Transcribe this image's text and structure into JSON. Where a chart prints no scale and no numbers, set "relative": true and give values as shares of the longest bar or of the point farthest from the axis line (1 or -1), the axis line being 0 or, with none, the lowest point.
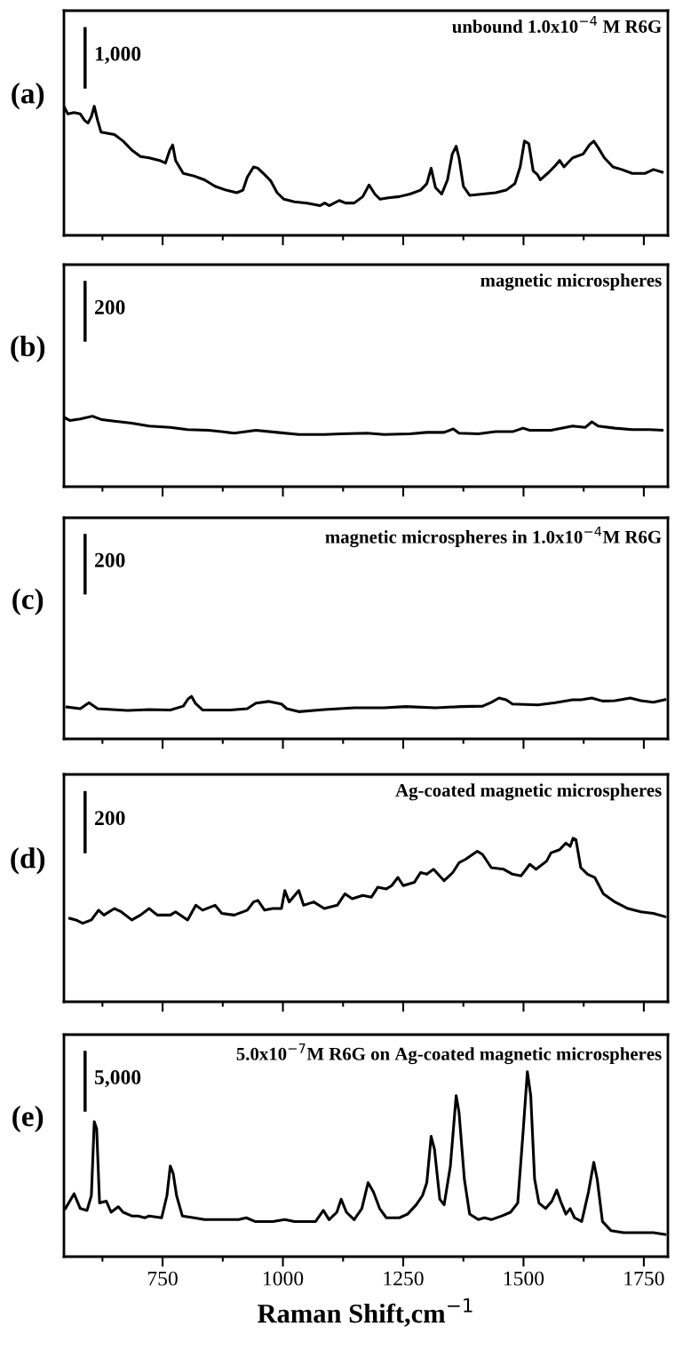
{
  "chart_data": [
    {
      "type": "line",
      "relative": true,
      "title": "unbound 1.0x10$^{−4}$ M R6G",
      "annotations": [
        "(a)",
        "1,000"
      ],
      "color": "#000000",
      "xlim": [
        545,
        1800
      ],
      "xticks": [
        {
          "value": 625,
          "label": null
        },
        750,
        {
          "value": 875,
          "label": null
        },
        1000,
        {
          "value": 1125,
          "label": null
        },
        1250,
        {
          "value": 1375,
          "label": null
        },
        1500,
        {
          "value": 1625,
          "label": null
        },
        1750
      ],
      "tick_labels": false,
      "x": [
        546,
        553,
        566,
        579,
        588,
        595,
        602,
        608,
        615,
        622,
        637,
        650,
        668,
        686,
        704,
        722,
        744,
        756,
        765,
        771,
        777,
        793,
        815,
        837,
        859,
        882,
        904,
        917,
        926,
        939,
        948,
        962,
        975,
        988,
        1002,
        1024,
        1050,
        1077,
        1087,
        1096,
        1117,
        1130,
        1148,
        1166,
        1179,
        1191,
        1202,
        1219,
        1242,
        1264,
        1286,
        1299,
        1308,
        1317,
        1330,
        1342,
        1352,
        1360,
        1366,
        1375,
        1388,
        1415,
        1442,
        1464,
        1482,
        1493,
        1502,
        1511,
        1520,
        1529,
        1535,
        1553,
        1566,
        1575,
        1584,
        1602,
        1624,
        1637,
        1646,
        1655,
        1668,
        1686,
        1704,
        1726,
        1753,
        1770,
        1788
      ],
      "values": [
        0.99,
        0.94,
        0.95,
        0.94,
        0.89,
        0.87,
        0.92,
        1.0,
        0.89,
        0.8,
        0.79,
        0.78,
        0.73,
        0.66,
        0.61,
        0.6,
        0.58,
        0.56,
        0.66,
        0.7,
        0.58,
        0.48,
        0.46,
        0.43,
        0.38,
        0.35,
        0.33,
        0.35,
        0.45,
        0.53,
        0.52,
        0.47,
        0.42,
        0.33,
        0.28,
        0.26,
        0.25,
        0.23,
        0.25,
        0.23,
        0.27,
        0.25,
        0.25,
        0.3,
        0.39,
        0.32,
        0.28,
        0.29,
        0.3,
        0.32,
        0.35,
        0.4,
        0.52,
        0.37,
        0.32,
        0.43,
        0.63,
        0.69,
        0.6,
        0.38,
        0.31,
        0.32,
        0.33,
        0.35,
        0.4,
        0.53,
        0.73,
        0.71,
        0.5,
        0.47,
        0.43,
        0.49,
        0.54,
        0.58,
        0.53,
        0.6,
        0.63,
        0.7,
        0.73,
        0.68,
        0.6,
        0.53,
        0.51,
        0.48,
        0.48,
        0.51,
        0.49
      ]
    },
    {
      "type": "line",
      "relative": true,
      "title": "magnetic microspheres",
      "annotations": [
        "(b)",
        "200"
      ],
      "color": "#000000",
      "xlim": [
        545,
        1800
      ],
      "xticks": [
        {
          "value": 625,
          "label": null
        },
        750,
        {
          "value": 875,
          "label": null
        },
        1000,
        {
          "value": 1125,
          "label": null
        },
        1250,
        {
          "value": 1375,
          "label": null
        },
        1500,
        {
          "value": 1625,
          "label": null
        },
        1750
      ],
      "tick_labels": false,
      "x": [
        546,
        557,
        579,
        604,
        624,
        650,
        686,
        722,
        766,
        802,
        846,
        899,
        944,
        988,
        1033,
        1086,
        1122,
        1175,
        1210,
        1264,
        1299,
        1335,
        1354,
        1366,
        1406,
        1442,
        1477,
        1499,
        1513,
        1557,
        1602,
        1628,
        1642,
        1655,
        1690,
        1726,
        1762,
        1788
      ],
      "values": [
        0.98,
        0.94,
        0.96,
        1.0,
        0.95,
        0.93,
        0.9,
        0.86,
        0.84,
        0.81,
        0.8,
        0.76,
        0.8,
        0.77,
        0.74,
        0.74,
        0.75,
        0.76,
        0.74,
        0.75,
        0.77,
        0.77,
        0.82,
        0.76,
        0.75,
        0.78,
        0.78,
        0.83,
        0.8,
        0.8,
        0.86,
        0.84,
        0.92,
        0.86,
        0.83,
        0.81,
        0.81,
        0.8
      ]
    },
    {
      "type": "line",
      "relative": true,
      "title": "magnetic microspheres in 1.0x10$^{−4}$M R6G",
      "annotations": [
        "(c)",
        "200"
      ],
      "color": "#000000",
      "xlim": [
        545,
        1800
      ],
      "xticks": [
        {
          "value": 625,
          "label": null
        },
        750,
        {
          "value": 875,
          "label": null
        },
        1000,
        {
          "value": 1125,
          "label": null
        },
        1250,
        {
          "value": 1375,
          "label": null
        },
        1500,
        {
          "value": 1625,
          "label": null
        },
        1750
      ],
      "tick_labels": false,
      "x": [
        551,
        579,
        597,
        615,
        677,
        722,
        766,
        793,
        803,
        810,
        818,
        833,
        890,
        926,
        944,
        970,
        997,
        1008,
        1033,
        1086,
        1148,
        1210,
        1255,
        1317,
        1370,
        1415,
        1433,
        1449,
        1464,
        1477,
        1530,
        1566,
        1602,
        1619,
        1642,
        1664,
        1690,
        1722,
        1744,
        1770,
        1794
      ],
      "values": [
        0.75,
        0.71,
        0.85,
        0.71,
        0.67,
        0.69,
        0.68,
        0.77,
        0.94,
        1.0,
        0.84,
        0.68,
        0.68,
        0.71,
        0.84,
        0.88,
        0.82,
        0.71,
        0.64,
        0.69,
        0.73,
        0.73,
        0.76,
        0.73,
        0.76,
        0.77,
        0.86,
        0.96,
        0.92,
        0.82,
        0.8,
        0.85,
        0.92,
        0.92,
        0.96,
        0.89,
        0.9,
        0.96,
        0.9,
        0.86,
        0.92
      ]
    },
    {
      "type": "line",
      "relative": true,
      "title": "Ag-coated magnetic microspheres",
      "annotations": [
        "(d)",
        "200"
      ],
      "color": "#000000",
      "xlim": [
        545,
        1800
      ],
      "xticks": [
        {
          "value": 625,
          "label": null
        },
        750,
        {
          "value": 875,
          "label": null
        },
        1000,
        {
          "value": 1125,
          "label": null
        },
        1250,
        {
          "value": 1375,
          "label": null
        },
        1500,
        {
          "value": 1625,
          "label": null
        },
        1750
      ],
      "tick_labels": false,
      "x": [
        557,
        570,
        584,
        602,
        617,
        628,
        650,
        664,
        686,
        704,
        722,
        739,
        766,
        777,
        802,
        819,
        833,
        859,
        873,
        899,
        926,
        939,
        948,
        962,
        979,
        997,
        1004,
        1013,
        1033,
        1043,
        1064,
        1086,
        1113,
        1129,
        1144,
        1166,
        1184,
        1197,
        1215,
        1226,
        1239,
        1250,
        1273,
        1286,
        1299,
        1313,
        1335,
        1353,
        1366,
        1379,
        1404,
        1415,
        1433,
        1459,
        1477,
        1495,
        1513,
        1526,
        1548,
        1557,
        1575,
        1588,
        1597,
        1603,
        1609,
        1619,
        1633,
        1648,
        1666,
        1690,
        1717,
        1744,
        1770,
        1794
      ],
      "values": [
        0.51,
        0.5,
        0.48,
        0.5,
        0.56,
        0.53,
        0.57,
        0.55,
        0.5,
        0.53,
        0.57,
        0.53,
        0.53,
        0.55,
        0.5,
        0.59,
        0.56,
        0.59,
        0.54,
        0.53,
        0.56,
        0.61,
        0.62,
        0.56,
        0.57,
        0.57,
        0.68,
        0.61,
        0.68,
        0.59,
        0.61,
        0.57,
        0.59,
        0.66,
        0.63,
        0.65,
        0.64,
        0.7,
        0.69,
        0.71,
        0.76,
        0.71,
        0.73,
        0.79,
        0.78,
        0.81,
        0.74,
        0.79,
        0.85,
        0.87,
        0.92,
        0.9,
        0.82,
        0.81,
        0.78,
        0.77,
        0.84,
        0.81,
        0.86,
        0.91,
        0.93,
        0.97,
        0.95,
        1.0,
        0.99,
        0.82,
        0.78,
        0.76,
        0.66,
        0.61,
        0.57,
        0.55,
        0.54,
        0.52
      ]
    },
    {
      "type": "line",
      "relative": true,
      "title": "5.0x10$^{−7}$M R6G on Ag-coated magnetic microspheres",
      "xlabel": "Raman Shift,cm$^{−1}$",
      "annotations": [
        "(e)",
        "5,000"
      ],
      "color": "#000000",
      "xlim": [
        545,
        1800
      ],
      "xticks": [
        {
          "value": 625,
          "label": null
        },
        750,
        {
          "value": 875,
          "label": null
        },
        1000,
        {
          "value": 1125,
          "label": null
        },
        1250,
        {
          "value": 1375,
          "label": null
        },
        1500,
        {
          "value": 1625,
          "label": null
        },
        1750
      ],
      "tick_labels": "x",
      "x": [
        548,
        566,
        579,
        593,
        602,
        608,
        613,
        619,
        633,
        643,
        658,
        668,
        686,
        699,
        713,
        722,
        748,
        759,
        766,
        772,
        779,
        791,
        815,
        837,
        873,
        908,
        924,
        942,
        979,
        1004,
        1024,
        1068,
        1084,
        1096,
        1112,
        1121,
        1132,
        1148,
        1164,
        1177,
        1188,
        1201,
        1215,
        1242,
        1259,
        1277,
        1290,
        1299,
        1308,
        1315,
        1326,
        1335,
        1348,
        1360,
        1366,
        1377,
        1388,
        1406,
        1419,
        1433,
        1455,
        1473,
        1488,
        1499,
        1508,
        1515,
        1523,
        1532,
        1546,
        1559,
        1569,
        1577,
        1588,
        1597,
        1606,
        1621,
        1635,
        1646,
        1653,
        1664,
        1682,
        1708,
        1744,
        1770,
        1794
      ],
      "values": [
        0.26,
        0.34,
        0.26,
        0.25,
        0.33,
        0.73,
        0.69,
        0.29,
        0.3,
        0.24,
        0.27,
        0.24,
        0.22,
        0.22,
        0.21,
        0.22,
        0.21,
        0.33,
        0.49,
        0.45,
        0.33,
        0.22,
        0.21,
        0.2,
        0.2,
        0.2,
        0.21,
        0.19,
        0.19,
        0.2,
        0.19,
        0.19,
        0.25,
        0.2,
        0.24,
        0.31,
        0.24,
        0.2,
        0.26,
        0.4,
        0.35,
        0.26,
        0.21,
        0.21,
        0.23,
        0.28,
        0.33,
        0.4,
        0.65,
        0.58,
        0.31,
        0.28,
        0.49,
        0.87,
        0.78,
        0.42,
        0.23,
        0.2,
        0.21,
        0.2,
        0.22,
        0.24,
        0.29,
        0.67,
        1.0,
        0.87,
        0.42,
        0.29,
        0.26,
        0.3,
        0.36,
        0.3,
        0.23,
        0.26,
        0.21,
        0.19,
        0.35,
        0.51,
        0.42,
        0.19,
        0.14,
        0.13,
        0.13,
        0.13,
        0.12
      ]
    }
  ]
}
